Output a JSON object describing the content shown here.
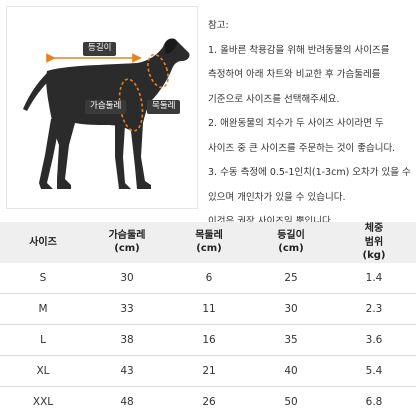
{
  "diagram": {
    "labels": {
      "back_length": "등길이",
      "chest_girth": "가슴둘레",
      "neck_girth": "목둘레"
    },
    "colors": {
      "arrow": "#e8821e",
      "dog": "#2b2b2b",
      "tag_bg": "#3a3a3a"
    }
  },
  "notes": {
    "title": "참고:",
    "lines": [
      "1. 올바른 착용감을 위해 반려동물의 사이즈를",
      "측정하여 아래 차트와 비교한 후 가슴둘레를",
      "기준으로 사이즈를 선택해주세요.",
      "2. 애완동물의 치수가 두 사이즈 사이라면 두",
      "사이즈 중 큰 사이즈를 주문하는 것이 좋습니다.",
      "3. 수동 측정에 0.5-1인치(1-3cm) 오차가 있을 수",
      "있으며  개인차가 있을 수 있습니다.",
      "이것은  권장 사이즈일 뿐입니다."
    ]
  },
  "table": {
    "headers": [
      {
        "line1": "사이즈",
        "line2": ""
      },
      {
        "line1": "가슴둘레",
        "line2": "(cm)"
      },
      {
        "line1": "목둘레",
        "line2": "(cm)"
      },
      {
        "line1": "등길이",
        "line2": "(cm)"
      },
      {
        "line1": "체중",
        "line2": "범위",
        "line3": "(kg)"
      }
    ],
    "rows": [
      [
        "S",
        "30",
        "6",
        "25",
        "1.4"
      ],
      [
        "M",
        "33",
        "11",
        "30",
        "2.3"
      ],
      [
        "L",
        "38",
        "16",
        "35",
        "3.6"
      ],
      [
        "XL",
        "43",
        "21",
        "40",
        "5.4"
      ],
      [
        "XXL",
        "48",
        "26",
        "50",
        "6.8"
      ]
    ]
  }
}
